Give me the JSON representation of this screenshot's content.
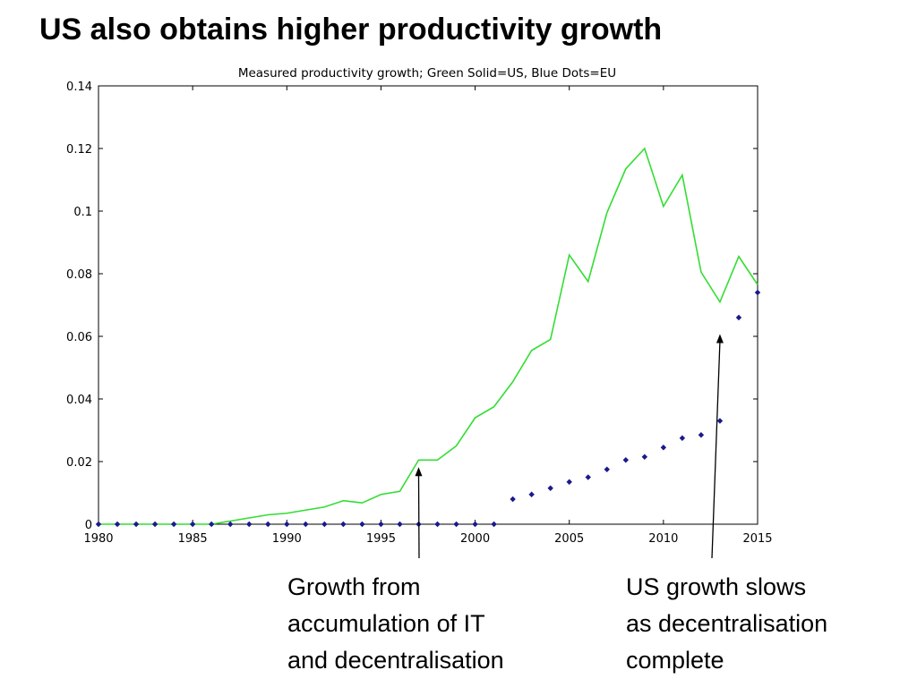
{
  "slide": {
    "title": "US also obtains higher productivity growth"
  },
  "annotations": [
    {
      "lines": [
        "Growth from",
        "accumulation of IT",
        "and decentralisation"
      ],
      "points_to_year": 1997,
      "points_to_value": 0.0205
    },
    {
      "lines": [
        "US growth slows",
        "as decentralisation",
        "complete"
      ],
      "points_to_year": 2013,
      "points_to_value": 0.063
    }
  ],
  "colors": {
    "us_line": "#33dd33",
    "eu_dots": "#1a1a8c",
    "axis": "#000000"
  },
  "chart_data": {
    "type": "line",
    "title": "Measured productivity growth; Green Solid=US, Blue Dots=EU",
    "xlabel": "",
    "ylabel": "",
    "xlim": [
      1980,
      2015
    ],
    "ylim": [
      0,
      0.14
    ],
    "xticks": [
      1980,
      1985,
      1990,
      1995,
      2000,
      2005,
      2010,
      2015
    ],
    "yticks": [
      0,
      0.02,
      0.04,
      0.06,
      0.08,
      0.1,
      0.12,
      0.14
    ],
    "ytick_labels": [
      "0",
      "0.02",
      "0.04",
      "0.06",
      "0.08",
      "0.1",
      "0.12",
      "0.14"
    ],
    "grid": false,
    "series": [
      {
        "name": "US",
        "style": "solid",
        "x": [
          1980,
          1981,
          1982,
          1983,
          1984,
          1985,
          1986,
          1987,
          1988,
          1989,
          1990,
          1991,
          1992,
          1993,
          1994,
          1995,
          1996,
          1997,
          1998,
          1999,
          2000,
          2001,
          2002,
          2003,
          2004,
          2005,
          2006,
          2007,
          2008,
          2009,
          2010,
          2011,
          2012,
          2013,
          2014,
          2015
        ],
        "values": [
          0,
          0,
          0,
          0,
          0,
          0,
          0,
          0.001,
          0.002,
          0.003,
          0.0035,
          0.0045,
          0.0055,
          0.0075,
          0.0068,
          0.0095,
          0.0105,
          0.0205,
          0.0205,
          0.025,
          0.034,
          0.0375,
          0.0455,
          0.0555,
          0.059,
          0.086,
          0.0775,
          0.0995,
          0.1135,
          0.12,
          0.1015,
          0.1115,
          0.0805,
          0.071,
          0.0855,
          0.0765
        ]
      },
      {
        "name": "EU",
        "style": "dots",
        "x": [
          1980,
          1981,
          1982,
          1983,
          1984,
          1985,
          1986,
          1987,
          1988,
          1989,
          1990,
          1991,
          1992,
          1993,
          1994,
          1995,
          1996,
          1997,
          1998,
          1999,
          2000,
          2001,
          2002,
          2003,
          2004,
          2005,
          2006,
          2007,
          2008,
          2009,
          2010,
          2011,
          2012,
          2013,
          2014,
          2015
        ],
        "values": [
          0,
          0,
          0,
          0,
          0,
          0,
          0,
          0,
          0,
          0,
          0,
          0,
          0,
          0,
          0,
          0,
          0,
          0,
          0,
          0,
          0,
          0,
          0.008,
          0.0095,
          0.0115,
          0.0135,
          0.015,
          0.0175,
          0.0205,
          0.0215,
          0.0245,
          0.0275,
          0.0285,
          0.033,
          0.066,
          0.074
        ]
      }
    ]
  }
}
